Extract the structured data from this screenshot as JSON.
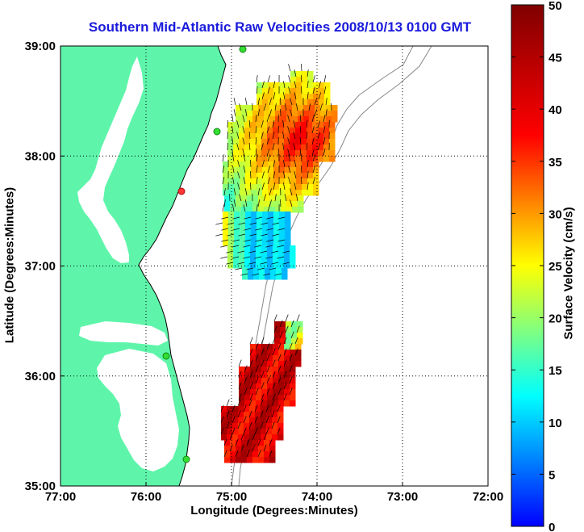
{
  "title": "Southern Mid-Atlantic Raw Velocities 2008/10/13 0100 GMT",
  "chart_data": {
    "type": "heatmap",
    "xlabel": "Longitude (Degrees:Minutes)",
    "ylabel": "Latitude (Degrees:Minutes)",
    "x_ticks": [
      "77:00",
      "76:00",
      "75:00",
      "74:00",
      "73:00",
      "72:00"
    ],
    "y_ticks": [
      "39:00",
      "38:00",
      "37:00",
      "36:00",
      "35:00"
    ],
    "xlim": [
      -77,
      -72
    ],
    "ylim": [
      35,
      39
    ],
    "grid": true,
    "colorbar": {
      "label": "Surface Velocity (cm/s)",
      "range": [
        0,
        50
      ],
      "ticks": [
        "50",
        "45",
        "40",
        "35",
        "30",
        "25",
        "20",
        "15",
        "10",
        "5",
        "0"
      ]
    },
    "colors": {
      "land": "#5ef5aa",
      "title": "#1a1adc",
      "station": "#33dd33",
      "station_alt": "#ff3333"
    }
  }
}
